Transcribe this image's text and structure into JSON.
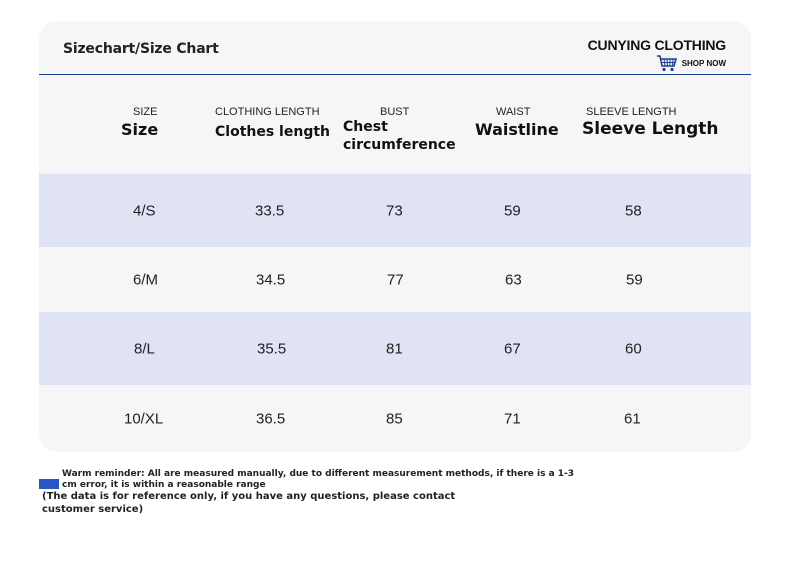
{
  "title": "Sizechart/Size Chart",
  "brand": {
    "name": "CUNYING CLOTHING",
    "tagline": "SHOP NOW",
    "icon": "shopping-cart-icon"
  },
  "columns": [
    {
      "en": "SIZE",
      "label": "Size"
    },
    {
      "en": "CLOTHING LENGTH",
      "label": "Clothes length"
    },
    {
      "en": "BUST",
      "label": "Chest circumference"
    },
    {
      "en": "WAIST",
      "label": "Waistline"
    },
    {
      "en": "SLEEVE LENGTH",
      "label": "Sleeve Length"
    }
  ],
  "rows": [
    [
      "4/S",
      "33.5",
      "73",
      "59",
      "58"
    ],
    [
      "6/M",
      "34.5",
      "77",
      "63",
      "59"
    ],
    [
      "8/L",
      "35.5",
      "81",
      "67",
      "60"
    ],
    [
      "10/XL",
      "36.5",
      "85",
      "71",
      "61"
    ]
  ],
  "reminder": "Warm reminder: All are measured manually, due to different measurement methods, if there is a 1-3 cm error, it is within a reasonable range",
  "note": "(The data is for reference only, if you have any questions, please contact customer service)",
  "colors": {
    "accent": "#1e3f8f",
    "stripe": "#dfe3f3",
    "card": "#f6f6f6",
    "marker": "#2a55c7"
  }
}
